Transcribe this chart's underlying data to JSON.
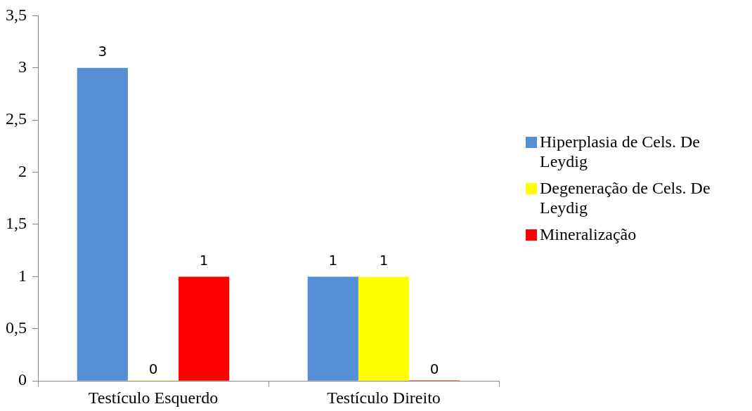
{
  "chart_data": {
    "type": "bar",
    "categories": [
      "Testículo Esquerdo",
      "Testículo Direito"
    ],
    "series": [
      {
        "name": "Hiperplasia de Cels. De Leydig",
        "color": "#558ed5",
        "values": [
          3,
          1
        ]
      },
      {
        "name": "Degeneração de Cels. De Leydig",
        "color": "#ffff00",
        "values": [
          0,
          1
        ]
      },
      {
        "name": "Mineralização",
        "color": "#ff0000",
        "values": [
          1,
          0
        ]
      }
    ],
    "ylim": [
      0,
      3.5
    ],
    "yticks": [
      0,
      {
        "value": 0.5,
        "label": "0,5"
      },
      1,
      {
        "value": 1.5,
        "label": "1,5"
      },
      2,
      {
        "value": 2.5,
        "label": "2,5"
      },
      3,
      {
        "value": 3.5,
        "label": "3,5"
      }
    ],
    "data_labels": true,
    "grid": false,
    "legend": "right"
  }
}
